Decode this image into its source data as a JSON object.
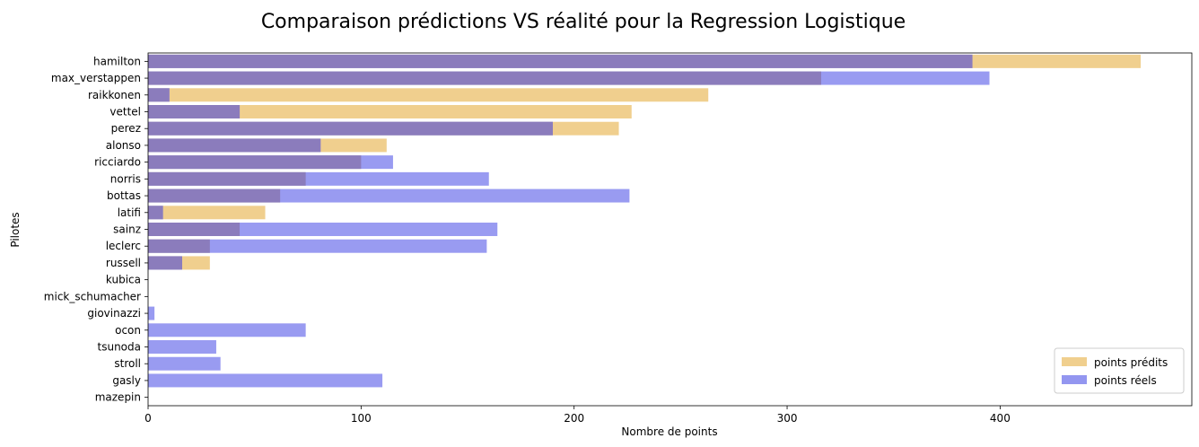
{
  "chart_data": {
    "type": "bar",
    "orientation": "horizontal",
    "title": "Comparaison prédictions VS réalité pour la Regression Logistique",
    "xlabel": "Nombre de points",
    "ylabel": "Pilotes",
    "xlim": [
      0,
      490
    ],
    "xticks": [
      0,
      100,
      200,
      300,
      400
    ],
    "grid": false,
    "legend_position": "lower-right",
    "categories": [
      "hamilton",
      "max_verstappen",
      "raikkonen",
      "vettel",
      "perez",
      "alonso",
      "ricciardo",
      "norris",
      "bottas",
      "latifi",
      "sainz",
      "leclerc",
      "russell",
      "kubica",
      "mick_schumacher",
      "giovinazzi",
      "ocon",
      "tsunoda",
      "stroll",
      "gasly",
      "mazepin"
    ],
    "series": [
      {
        "name": "points prédits",
        "color": "#f0cf8e",
        "values": [
          466,
          316,
          263,
          227,
          221,
          112,
          100,
          74,
          62,
          55,
          43,
          29,
          29,
          0,
          0,
          0,
          0,
          0,
          0,
          0,
          0
        ]
      },
      {
        "name": "points réels",
        "color": "#9396f0",
        "values": [
          387,
          395,
          10,
          43,
          190,
          81,
          115,
          160,
          226,
          7,
          164,
          159,
          16,
          0,
          0,
          3,
          74,
          32,
          34,
          110,
          0
        ]
      }
    ],
    "overlap_color": "#8b7cbc"
  }
}
